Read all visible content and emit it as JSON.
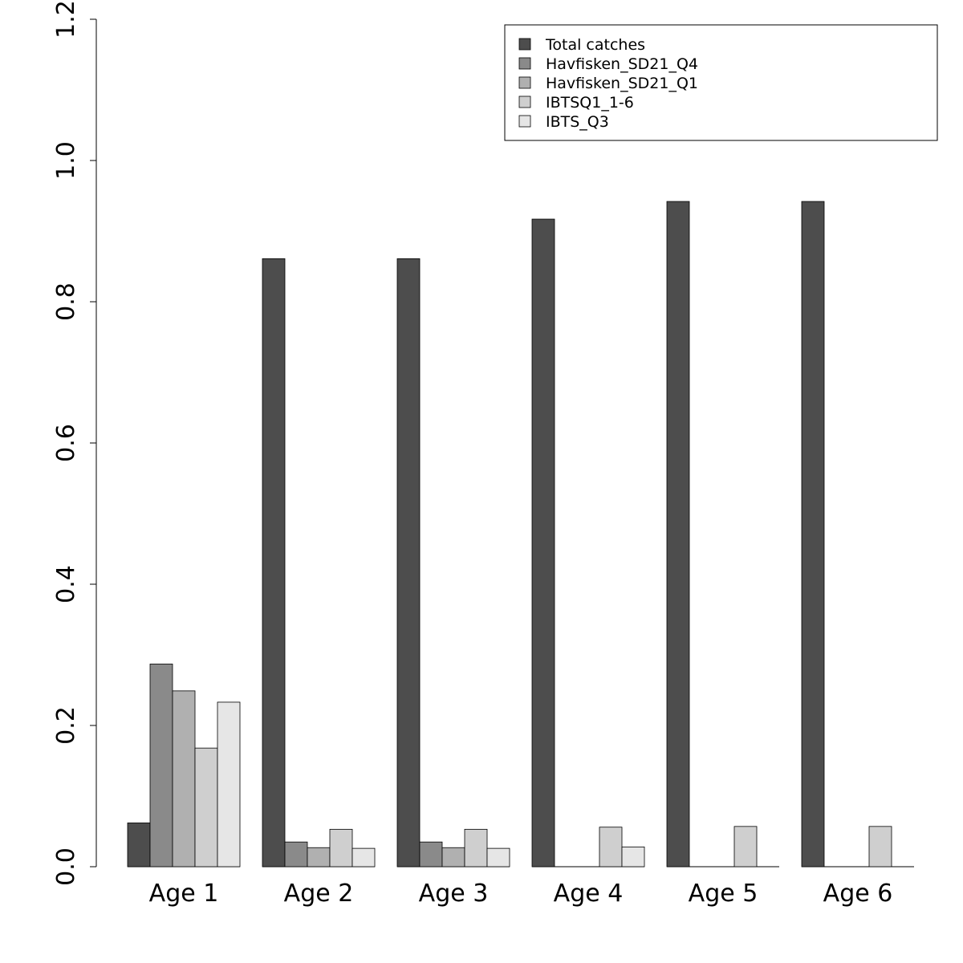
{
  "chart_data": {
    "type": "bar",
    "categories": [
      "Age 1",
      "Age 2",
      "Age 3",
      "Age 4",
      "Age 5",
      "Age 6"
    ],
    "series": [
      {
        "name": "Total catches",
        "color": "#4d4d4d",
        "values": [
          0.062,
          0.861,
          0.861,
          0.917,
          0.942,
          0.942
        ]
      },
      {
        "name": "Havfisken_SD21_Q4",
        "color": "#8a8a8a",
        "values": [
          0.287,
          0.035,
          0.035,
          0.0,
          0.0,
          0.0
        ]
      },
      {
        "name": "Havfisken_SD21_Q1",
        "color": "#b0b0b0",
        "values": [
          0.249,
          0.027,
          0.027,
          0.0,
          0.0,
          0.0
        ]
      },
      {
        "name": "IBTSQ1_1-6",
        "color": "#cfcfcf",
        "values": [
          0.168,
          0.053,
          0.053,
          0.056,
          0.057,
          0.057
        ]
      },
      {
        "name": "IBTS_Q3",
        "color": "#e6e6e6",
        "values": [
          0.233,
          0.026,
          0.026,
          0.028,
          0.0,
          0.0
        ]
      }
    ],
    "ylim": [
      0,
      1.2
    ],
    "yticks": [
      "0.0",
      "0.2",
      "0.4",
      "0.6",
      "0.8",
      "1.0",
      "1.2"
    ],
    "xlabel": "",
    "ylabel": "",
    "grid": false,
    "legend_position": "top-right"
  }
}
